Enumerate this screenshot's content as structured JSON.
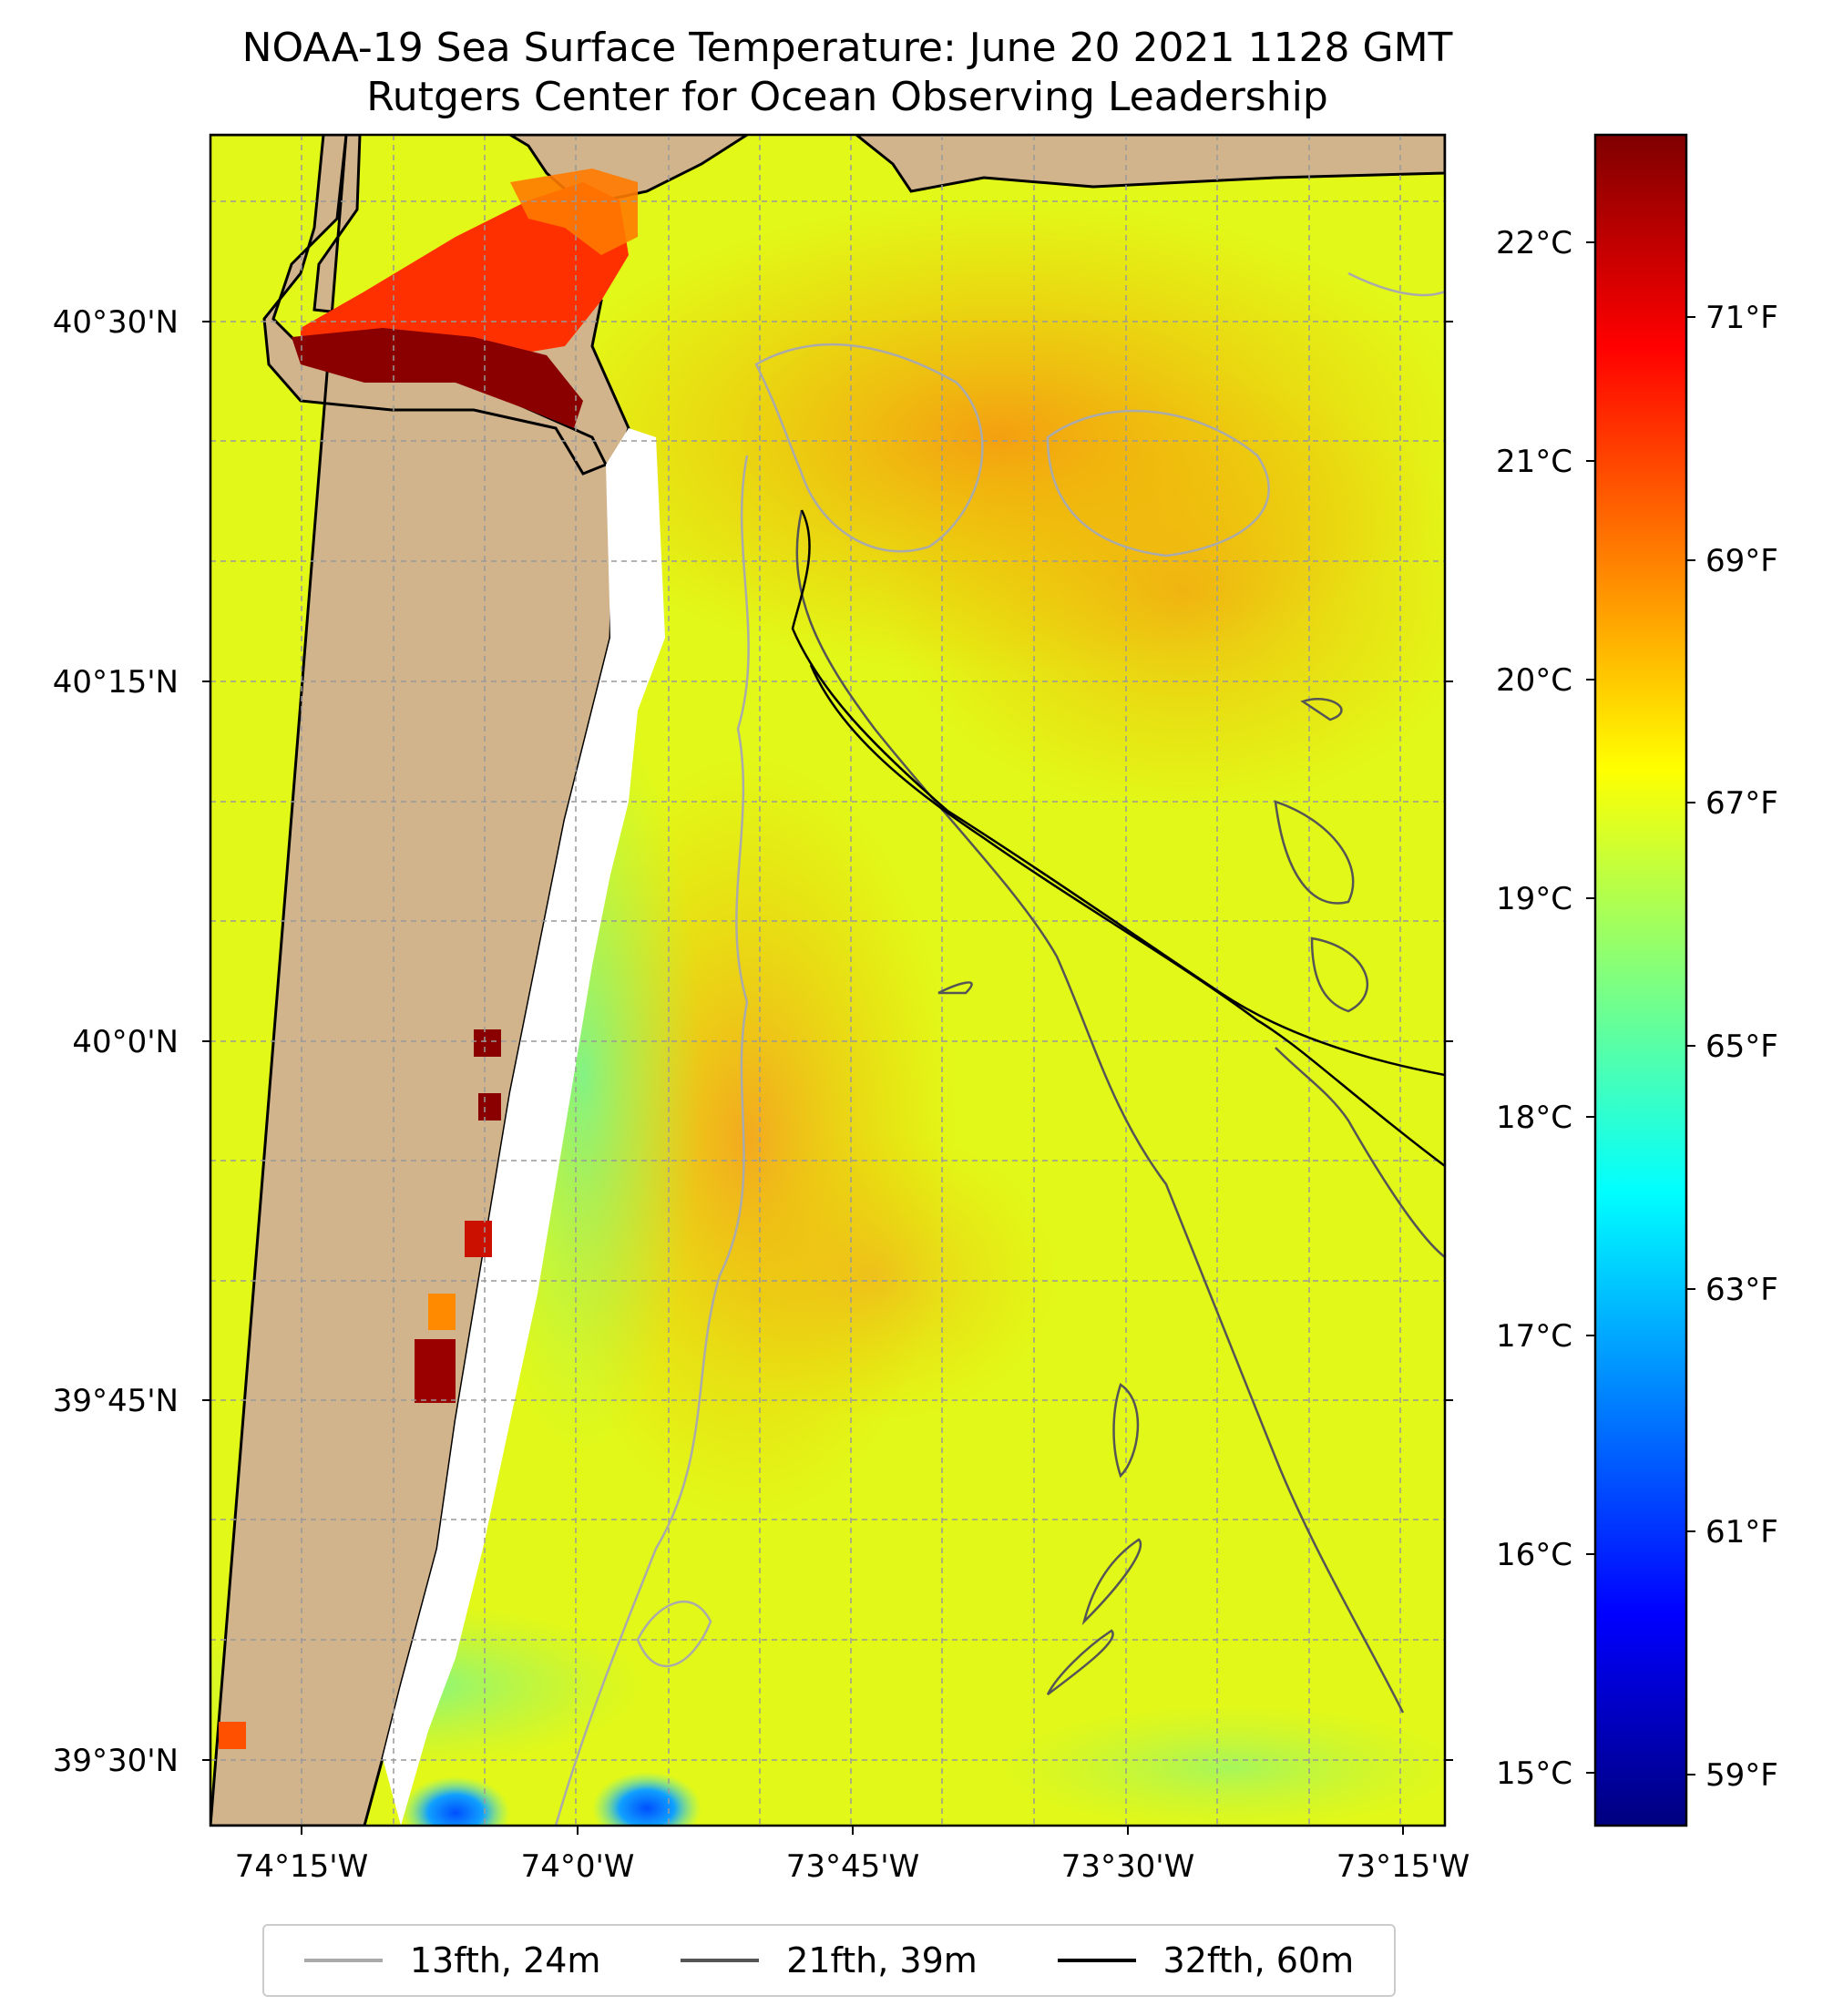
{
  "title": {
    "line1": "NOAA-19 Sea Surface Temperature: June 20 2021 1128 GMT",
    "line2": "Rutgers Center for Ocean Observing Leadership"
  },
  "map": {
    "latitude_labels": [
      "40°30'N",
      "40°15'N",
      "40°0'N",
      "39°45'N",
      "39°30'N"
    ],
    "longitude_labels": [
      "74°15'W",
      "74°0'W",
      "73°45'W",
      "73°30'W",
      "73°15'W"
    ],
    "colors": {
      "land": "#d2b48c",
      "no_data": "#ffffff",
      "coastline": "#000000",
      "gridline": "#999999"
    }
  },
  "colorbar": {
    "celsius_labels": [
      "22°C",
      "21°C",
      "20°C",
      "19°C",
      "18°C",
      "17°C",
      "16°C",
      "15°C"
    ],
    "fahrenheit_labels": [
      "71°F",
      "69°F",
      "67°F",
      "65°F",
      "63°F",
      "61°F",
      "59°F"
    ],
    "colormap": "jet",
    "stops": [
      "#00007f",
      "#0000ff",
      "#007fff",
      "#00ffff",
      "#7fff7f",
      "#ffff00",
      "#ff7f00",
      "#ff0000",
      "#7f0000"
    ]
  },
  "legend": {
    "items": [
      {
        "label": "13fth, 24m",
        "color": "#aaaaaa"
      },
      {
        "label": "21fth, 39m",
        "color": "#555555"
      },
      {
        "label": "32fth, 60m",
        "color": "#000000"
      }
    ]
  }
}
